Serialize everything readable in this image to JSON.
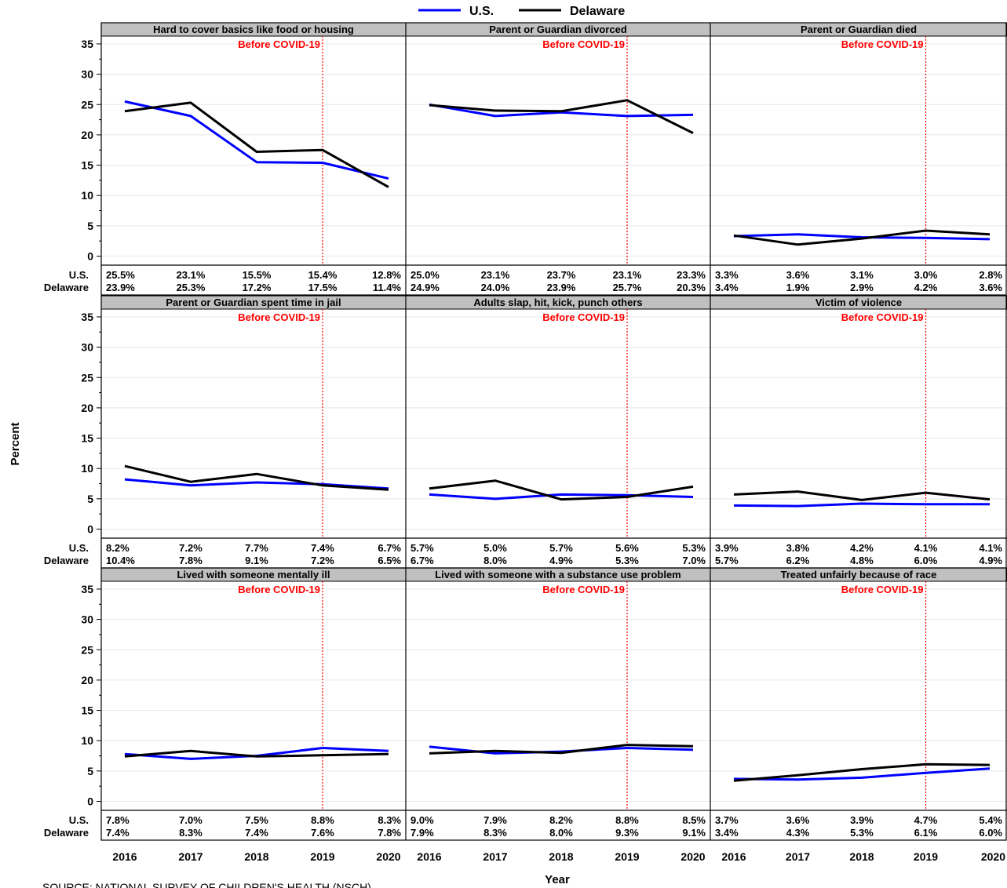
{
  "chart_data": {
    "type": "line",
    "layout": "3x3 small multiples",
    "xlabel": "Year",
    "ylabel": "Percent",
    "ylim": [
      0,
      35
    ],
    "yticks": [
      0,
      5,
      10,
      15,
      20,
      25,
      30,
      35
    ],
    "x": [
      "2016",
      "2017",
      "2018",
      "2019",
      "2020"
    ],
    "legend": {
      "placement": "top-center",
      "entries": [
        {
          "name": "U.S.",
          "color": "#0000ff"
        },
        {
          "name": "Delaware",
          "color": "#000000"
        }
      ]
    },
    "table_row_labels": [
      "U.S.",
      "Delaware"
    ],
    "covid_marker": {
      "x": "2019",
      "label": "Before COVID-19",
      "color": "#ff0000"
    },
    "source": "SOURCE: NATIONAL SURVEY OF CHILDREN'S HEALTH (NSCH)",
    "panels": [
      {
        "title": "Hard to cover basics like food or housing",
        "us": [
          25.5,
          23.1,
          15.5,
          15.4,
          12.8
        ],
        "de": [
          23.9,
          25.3,
          17.2,
          17.5,
          11.4
        ],
        "us_labels": [
          "25.5%",
          "23.1%",
          "15.5%",
          "15.4%",
          "12.8%"
        ],
        "de_labels": [
          "23.9%",
          "25.3%",
          "17.2%",
          "17.5%",
          "11.4%"
        ]
      },
      {
        "title": "Parent or Guardian divorced",
        "us": [
          25.0,
          23.1,
          23.7,
          23.1,
          23.3
        ],
        "de": [
          24.9,
          24.0,
          23.9,
          25.7,
          20.3
        ],
        "us_labels": [
          "25.0%",
          "23.1%",
          "23.7%",
          "23.1%",
          "23.3%"
        ],
        "de_labels": [
          "24.9%",
          "24.0%",
          "23.9%",
          "25.7%",
          "20.3%"
        ]
      },
      {
        "title": "Parent or Guardian died",
        "us": [
          3.3,
          3.6,
          3.1,
          3.0,
          2.8
        ],
        "de": [
          3.4,
          1.9,
          2.9,
          4.2,
          3.6
        ],
        "us_labels": [
          "3.3%",
          "3.6%",
          "3.1%",
          "3.0%",
          "2.8%"
        ],
        "de_labels": [
          "3.4%",
          "1.9%",
          "2.9%",
          "4.2%",
          "3.6%"
        ]
      },
      {
        "title": "Parent or Guardian spent time in jail",
        "us": [
          8.2,
          7.2,
          7.7,
          7.4,
          6.7
        ],
        "de": [
          10.4,
          7.8,
          9.1,
          7.2,
          6.5
        ],
        "us_labels": [
          "8.2%",
          "7.2%",
          "7.7%",
          "7.4%",
          "6.7%"
        ],
        "de_labels": [
          "10.4%",
          "7.8%",
          "9.1%",
          "7.2%",
          "6.5%"
        ]
      },
      {
        "title": "Adults slap, hit, kick, punch others",
        "us": [
          5.7,
          5.0,
          5.7,
          5.6,
          5.3
        ],
        "de": [
          6.7,
          8.0,
          4.9,
          5.3,
          7.0
        ],
        "us_labels": [
          "5.7%",
          "5.0%",
          "5.7%",
          "5.6%",
          "5.3%"
        ],
        "de_labels": [
          "6.7%",
          "8.0%",
          "4.9%",
          "5.3%",
          "7.0%"
        ]
      },
      {
        "title": "Victim of violence",
        "us": [
          3.9,
          3.8,
          4.2,
          4.1,
          4.1
        ],
        "de": [
          5.7,
          6.2,
          4.8,
          6.0,
          4.9
        ],
        "us_labels": [
          "3.9%",
          "3.8%",
          "4.2%",
          "4.1%",
          "4.1%"
        ],
        "de_labels": [
          "5.7%",
          "6.2%",
          "4.8%",
          "6.0%",
          "4.9%"
        ]
      },
      {
        "title": "Lived with someone mentally ill",
        "us": [
          7.8,
          7.0,
          7.5,
          8.8,
          8.3
        ],
        "de": [
          7.4,
          8.3,
          7.4,
          7.6,
          7.8
        ],
        "us_labels": [
          "7.8%",
          "7.0%",
          "7.5%",
          "8.8%",
          "8.3%"
        ],
        "de_labels": [
          "7.4%",
          "8.3%",
          "7.4%",
          "7.6%",
          "7.8%"
        ]
      },
      {
        "title": "Lived with someone with a substance use problem",
        "us": [
          9.0,
          7.9,
          8.2,
          8.8,
          8.5
        ],
        "de": [
          7.9,
          8.3,
          8.0,
          9.3,
          9.1
        ],
        "us_labels": [
          "9.0%",
          "7.9%",
          "8.2%",
          "8.8%",
          "8.5%"
        ],
        "de_labels": [
          "7.9%",
          "8.3%",
          "8.0%",
          "9.3%",
          "9.1%"
        ]
      },
      {
        "title": "Treated unfairly because of race",
        "us": [
          3.7,
          3.6,
          3.9,
          4.7,
          5.4
        ],
        "de": [
          3.4,
          4.3,
          5.3,
          6.1,
          6.0
        ],
        "us_labels": [
          "3.7%",
          "3.6%",
          "3.9%",
          "4.7%",
          "5.4%"
        ],
        "de_labels": [
          "3.4%",
          "4.3%",
          "5.3%",
          "6.1%",
          "6.0%"
        ]
      }
    ]
  }
}
